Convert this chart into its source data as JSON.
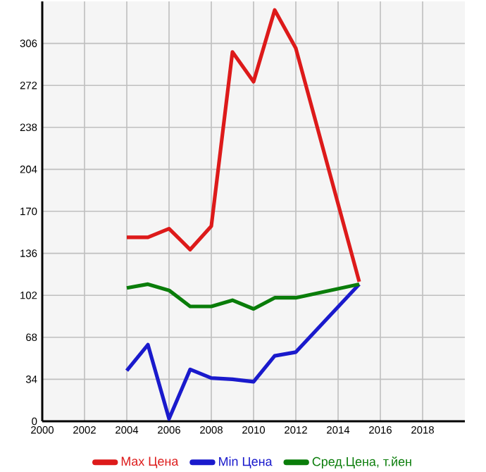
{
  "chart_data": {
    "type": "line",
    "x": [
      2004,
      2005,
      2006,
      2007,
      2008,
      2009,
      2010,
      2011,
      2012,
      2015
    ],
    "series": [
      {
        "name": "Max Цена",
        "color": "#dd1a1a",
        "values": [
          149,
          149,
          156,
          139,
          158,
          299,
          275,
          333,
          302,
          113
        ]
      },
      {
        "name": "Min Цена",
        "color": "#1a1acc",
        "values": [
          41,
          62,
          2,
          42,
          35,
          34,
          32,
          53,
          56,
          111
        ]
      },
      {
        "name": "Сред.Цена, т.йен",
        "color": "#0a7d0a",
        "values": [
          108,
          111,
          106,
          93,
          93,
          98,
          91,
          100,
          100,
          111
        ]
      }
    ],
    "xlim": [
      2000,
      2020
    ],
    "xticks": [
      2000,
      2002,
      2004,
      2006,
      2008,
      2010,
      2012,
      2014,
      2016,
      2018
    ],
    "ylim": [
      0,
      340
    ],
    "yticks": [
      0,
      34,
      68,
      102,
      136,
      170,
      204,
      238,
      272,
      306
    ],
    "grid": true,
    "legend": "bottom",
    "marker": "none",
    "line_style": "solid"
  }
}
